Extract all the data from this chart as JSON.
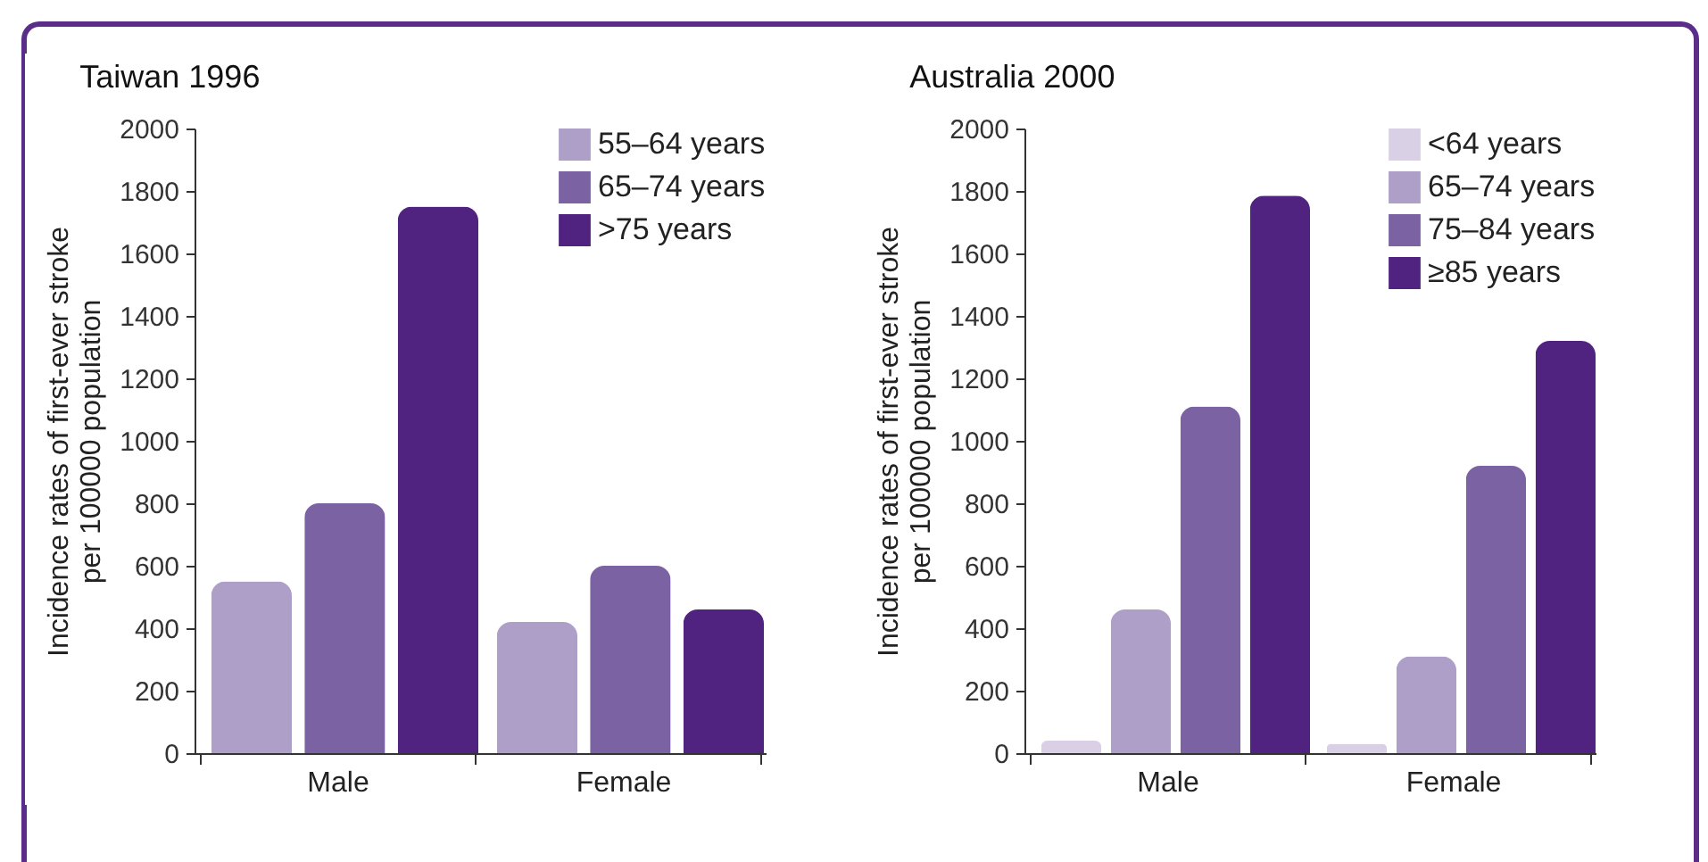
{
  "chart_data": [
    {
      "type": "bar",
      "title": "Taiwan 1996",
      "ylabel": "Incidence rates of first-ever stroke\nper 100000 population",
      "categories": [
        "Male",
        "Female"
      ],
      "series": [
        {
          "name": "55–64 years",
          "color": "#ae9fc9",
          "values": [
            550,
            420
          ]
        },
        {
          "name": "65–74 years",
          "color": "#7b62a3",
          "values": [
            800,
            600
          ]
        },
        {
          "name": ">75 years",
          "color": "#502380",
          "values": [
            1750,
            460
          ]
        }
      ],
      "ylim": [
        0,
        2000
      ],
      "yticks": [
        0,
        200,
        400,
        600,
        800,
        1000,
        1200,
        1400,
        1600,
        1800,
        2000
      ],
      "grid": false,
      "legend": "top right"
    },
    {
      "type": "bar",
      "title": "Australia 2000",
      "ylabel": "Incidence rates of first-ever stroke\nper 100000 population",
      "categories": [
        "Male",
        "Female"
      ],
      "series": [
        {
          "name": "<64 years",
          "color": "#d9d0e6",
          "values": [
            40,
            30
          ]
        },
        {
          "name": "65–74 years",
          "color": "#ae9fc9",
          "values": [
            460,
            310
          ]
        },
        {
          "name": "75–84 years",
          "color": "#7b62a3",
          "values": [
            1110,
            920
          ]
        },
        {
          "name": "≥85 years",
          "color": "#502380",
          "values": [
            1785,
            1320
          ]
        }
      ],
      "ylim": [
        0,
        2000
      ],
      "yticks": [
        0,
        200,
        400,
        600,
        800,
        1000,
        1200,
        1400,
        1600,
        1800,
        2000
      ],
      "grid": false,
      "legend": "top right"
    }
  ]
}
